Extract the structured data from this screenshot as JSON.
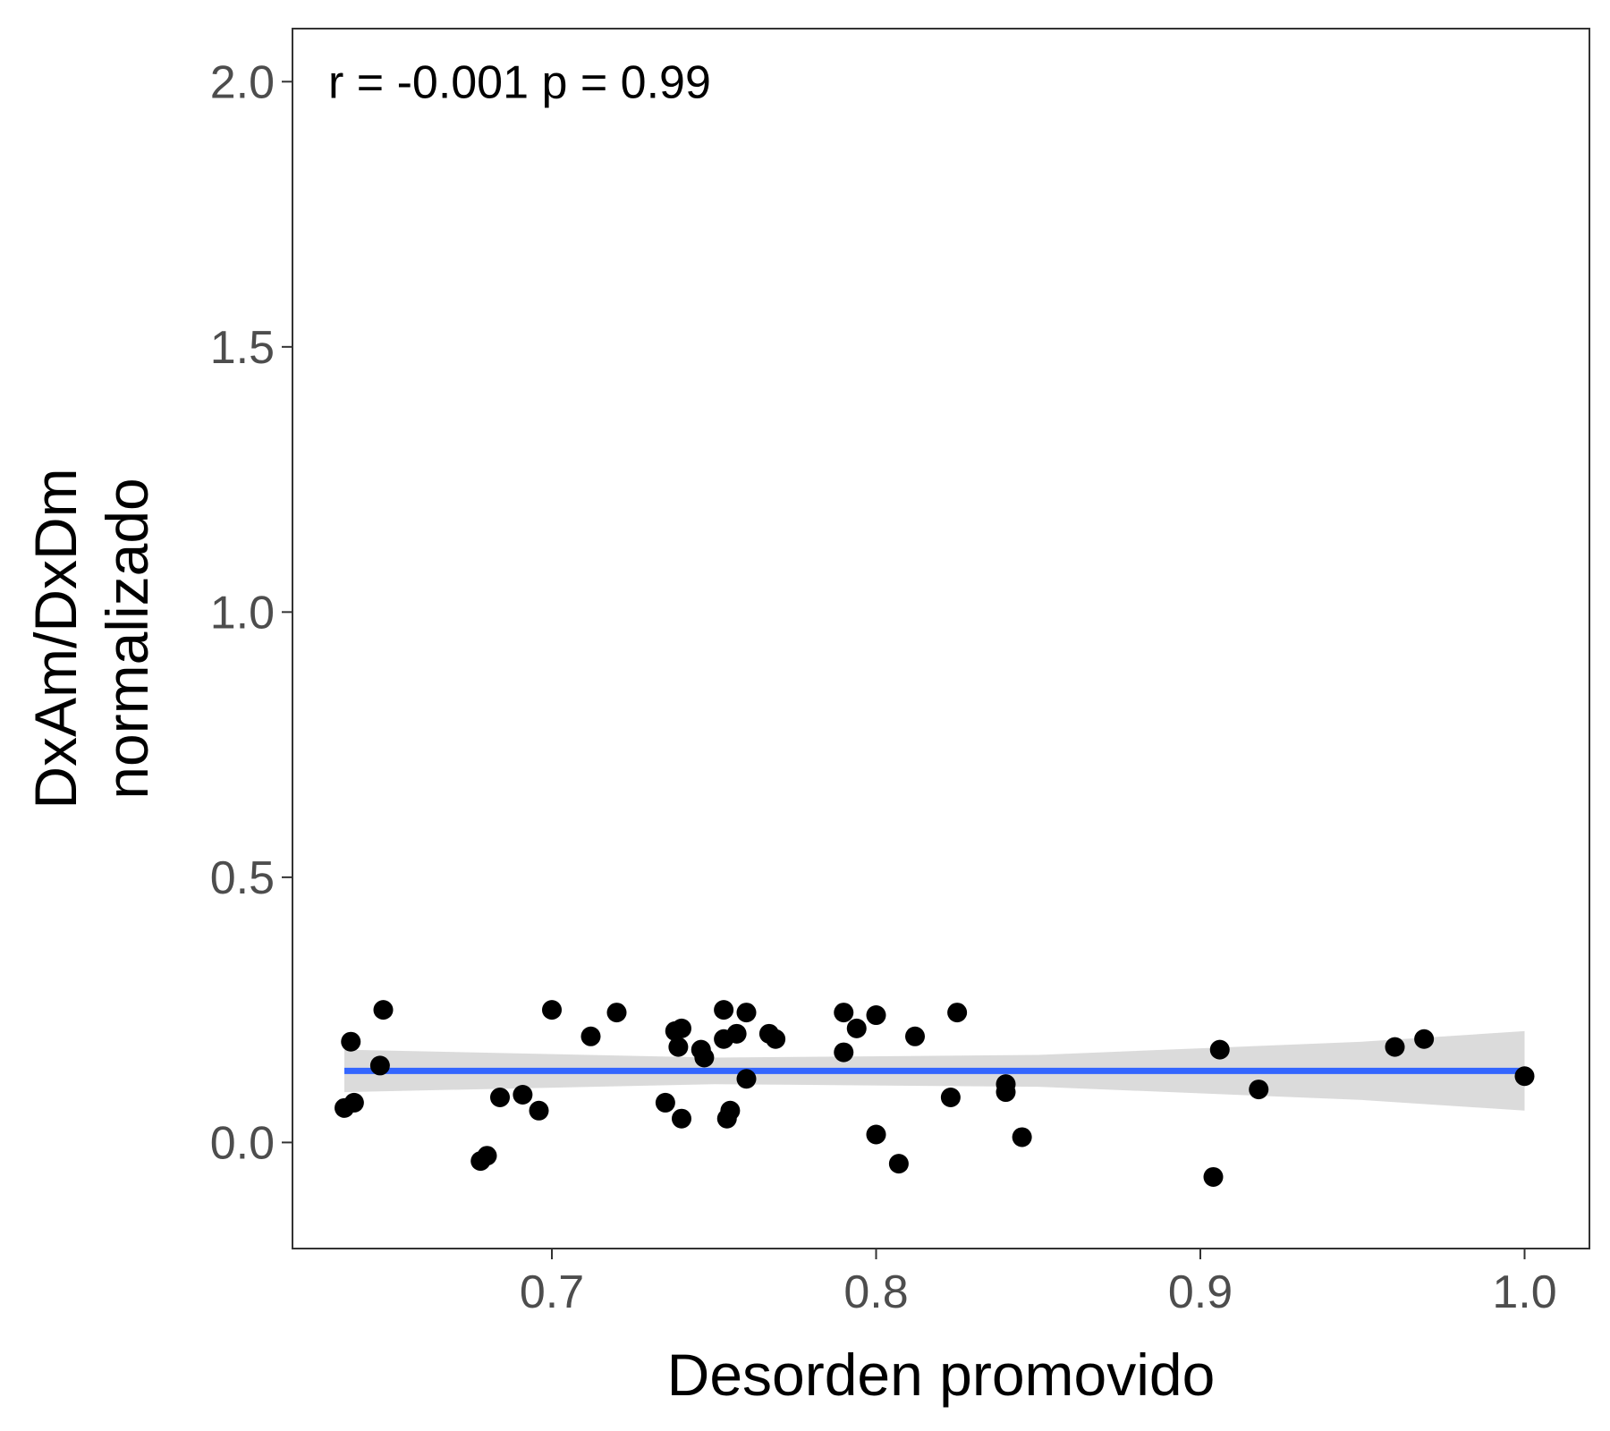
{
  "chart_data": {
    "type": "scatter",
    "title": "",
    "xlabel": "Desorden promovido",
    "ylabel_lines": [
      "DxAm/DxDm",
      "normalizado"
    ],
    "annotation": "r =  -0.001  p =  0.99",
    "xlim": [
      0.62,
      1.02
    ],
    "ylim": [
      -0.2,
      2.1
    ],
    "x_ticks": [
      0.7,
      0.8,
      0.9,
      1.0
    ],
    "x_tick_labels": [
      "0.7",
      "0.8",
      "0.9",
      "1.0"
    ],
    "y_ticks": [
      0.0,
      0.5,
      1.0,
      1.5,
      2.0
    ],
    "y_tick_labels": [
      "0.0",
      "0.5",
      "1.0",
      "1.5",
      "2.0"
    ],
    "grid": false,
    "colors": {
      "points": "#000000",
      "fit_line": "#3366FF",
      "confidence_band": "#D9D9D9",
      "panel_border": "#333333",
      "tick_text": "#4d4d4d"
    },
    "points": [
      {
        "x": 0.636,
        "y": 0.065
      },
      {
        "x": 0.639,
        "y": 0.075
      },
      {
        "x": 0.638,
        "y": 0.19
      },
      {
        "x": 0.647,
        "y": 0.145
      },
      {
        "x": 0.648,
        "y": 0.25
      },
      {
        "x": 0.678,
        "y": -0.035
      },
      {
        "x": 0.68,
        "y": -0.025
      },
      {
        "x": 0.684,
        "y": 0.085
      },
      {
        "x": 0.691,
        "y": 0.09
      },
      {
        "x": 0.696,
        "y": 0.06
      },
      {
        "x": 0.7,
        "y": 0.25
      },
      {
        "x": 0.712,
        "y": 0.2
      },
      {
        "x": 0.72,
        "y": 0.245
      },
      {
        "x": 0.735,
        "y": 0.075
      },
      {
        "x": 0.738,
        "y": 0.21
      },
      {
        "x": 0.739,
        "y": 0.18
      },
      {
        "x": 0.74,
        "y": 0.215
      },
      {
        "x": 0.74,
        "y": 0.045
      },
      {
        "x": 0.746,
        "y": 0.175
      },
      {
        "x": 0.747,
        "y": 0.16
      },
      {
        "x": 0.753,
        "y": 0.25
      },
      {
        "x": 0.753,
        "y": 0.195
      },
      {
        "x": 0.754,
        "y": 0.045
      },
      {
        "x": 0.755,
        "y": 0.06
      },
      {
        "x": 0.757,
        "y": 0.205
      },
      {
        "x": 0.76,
        "y": 0.245
      },
      {
        "x": 0.76,
        "y": 0.12
      },
      {
        "x": 0.767,
        "y": 0.205
      },
      {
        "x": 0.769,
        "y": 0.195
      },
      {
        "x": 0.79,
        "y": 0.245
      },
      {
        "x": 0.79,
        "y": 0.17
      },
      {
        "x": 0.794,
        "y": 0.215
      },
      {
        "x": 0.8,
        "y": 0.24
      },
      {
        "x": 0.8,
        "y": 0.015
      },
      {
        "x": 0.807,
        "y": -0.04
      },
      {
        "x": 0.812,
        "y": 0.2
      },
      {
        "x": 0.823,
        "y": 0.085
      },
      {
        "x": 0.825,
        "y": 0.245
      },
      {
        "x": 0.84,
        "y": 0.11
      },
      {
        "x": 0.84,
        "y": 0.095
      },
      {
        "x": 0.845,
        "y": 0.01
      },
      {
        "x": 0.904,
        "y": -0.065
      },
      {
        "x": 0.906,
        "y": 0.175
      },
      {
        "x": 0.918,
        "y": 0.1
      },
      {
        "x": 0.96,
        "y": 0.18
      },
      {
        "x": 0.969,
        "y": 0.195
      },
      {
        "x": 1.0,
        "y": 0.125
      }
    ],
    "fit_line": {
      "x": [
        0.636,
        1.0
      ],
      "y": [
        0.135,
        0.135
      ]
    },
    "confidence_band": {
      "x": [
        0.636,
        0.75,
        0.85,
        0.95,
        1.0
      ],
      "upper": [
        0.175,
        0.16,
        0.165,
        0.19,
        0.21
      ],
      "lower": [
        0.095,
        0.11,
        0.105,
        0.08,
        0.06
      ]
    }
  }
}
